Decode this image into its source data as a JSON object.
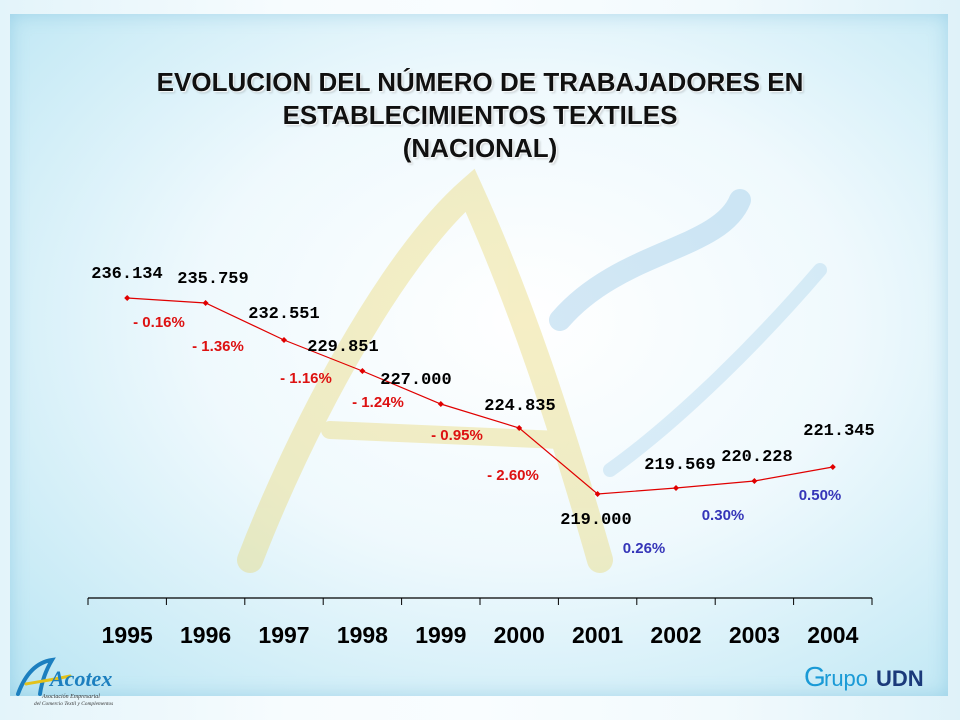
{
  "title_lines": [
    "EVOLUCION DEL NÚMERO DE TRABAJADORES EN",
    "ESTABLECIMIENTOS TEXTILES",
    "(NACIONAL)"
  ],
  "colors": {
    "line": "#e00000",
    "negative_label": "#dd1111",
    "positive_label": "#3535b8",
    "value_label": "#000000",
    "year_label": "#000000"
  },
  "logos": {
    "left": {
      "name": "Acotex",
      "tagline_1": "Asociación Empresarial",
      "tagline_2": "del Comercio Textil y Complementos"
    },
    "right": {
      "name_part_1": "rupo",
      "name_part_2": "UDN",
      "initial": "G"
    }
  },
  "chart_data": {
    "type": "line",
    "categories": [
      "1995",
      "1996",
      "1997",
      "1998",
      "1999",
      "2000",
      "2001",
      "2002",
      "2003",
      "2004"
    ],
    "values": [
      236.134,
      235.759,
      232.551,
      229.851,
      227.0,
      224.835,
      219.0,
      219.569,
      220.228,
      221.345
    ],
    "value_labels": [
      "236.134",
      "235.759",
      "232.551",
      "229.851",
      "227.000",
      "224.835",
      "219.000",
      "219.569",
      "220.228",
      "221.345"
    ],
    "change_labels": [
      "- 0.16%",
      "- 1.36%",
      "- 1.16%",
      "- 1.24%",
      "- 0.95%",
      "- 2.60%",
      "0.26%",
      "0.30%",
      "0.50%"
    ],
    "change_signs": [
      "neg",
      "neg",
      "neg",
      "neg",
      "neg",
      "neg",
      "pos",
      "pos",
      "pos"
    ],
    "ylim": [
      209,
      241
    ],
    "grid": false,
    "legend": "none"
  }
}
